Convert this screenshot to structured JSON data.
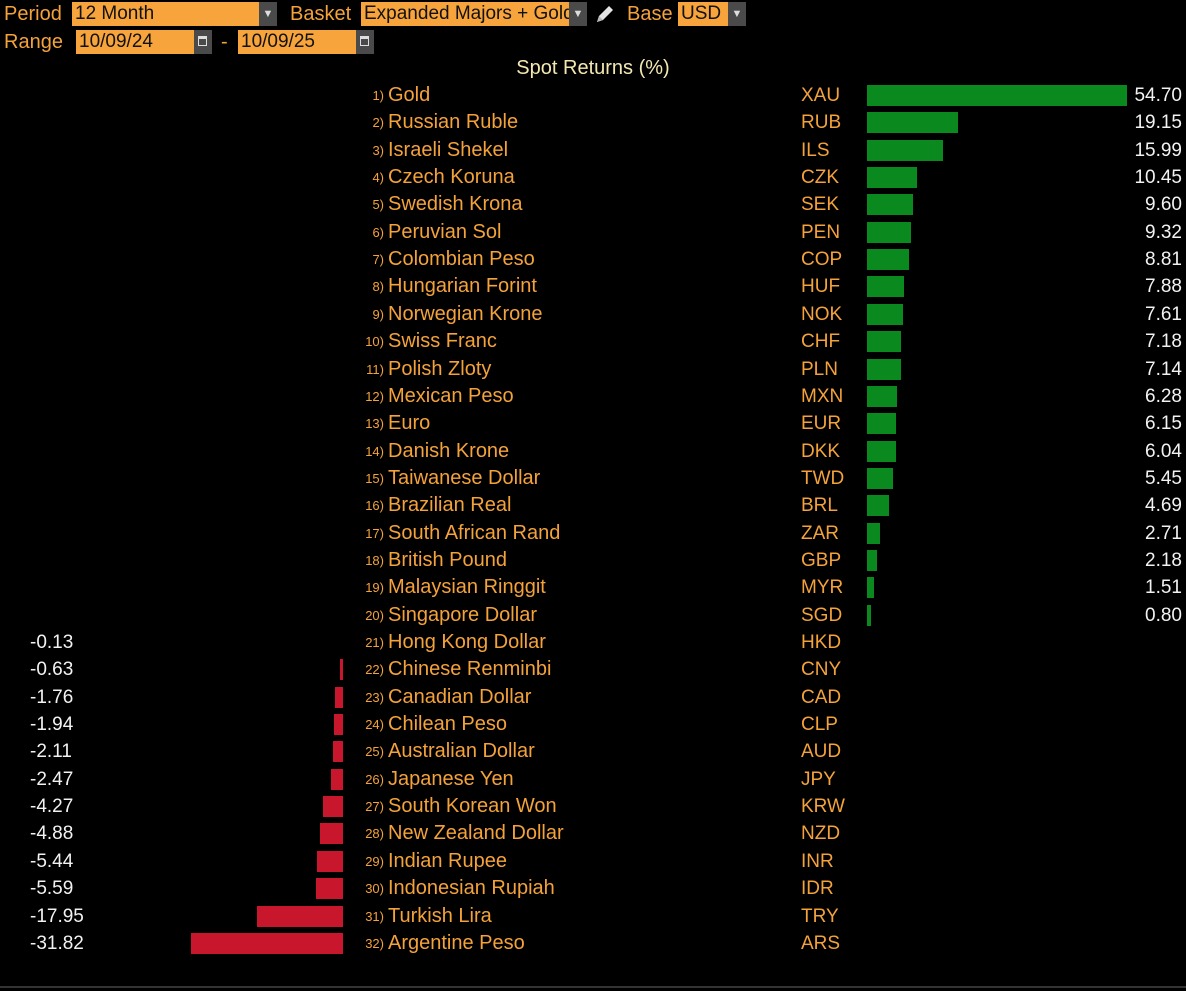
{
  "toolbar": {
    "period_label": "Period",
    "period_value": "12 Month",
    "basket_label": "Basket",
    "basket_value": "Expanded Majors + Gold",
    "base_label": "Base",
    "base_value": "USD",
    "range_label": "Range",
    "range_start": "10/09/24",
    "range_sep": "-",
    "range_end": "10/09/25"
  },
  "chart_data": {
    "type": "bar",
    "title": "Spot Returns (%)",
    "orientation": "horizontal",
    "rows": [
      {
        "rank": "1)",
        "name": "Gold",
        "code": "XAU",
        "value": 54.7
      },
      {
        "rank": "2)",
        "name": "Russian Ruble",
        "code": "RUB",
        "value": 19.15
      },
      {
        "rank": "3)",
        "name": "Israeli Shekel",
        "code": "ILS",
        "value": 15.99
      },
      {
        "rank": "4)",
        "name": "Czech Koruna",
        "code": "CZK",
        "value": 10.45
      },
      {
        "rank": "5)",
        "name": "Swedish Krona",
        "code": "SEK",
        "value": 9.6
      },
      {
        "rank": "6)",
        "name": "Peruvian Sol",
        "code": "PEN",
        "value": 9.32
      },
      {
        "rank": "7)",
        "name": "Colombian Peso",
        "code": "COP",
        "value": 8.81
      },
      {
        "rank": "8)",
        "name": "Hungarian Forint",
        "code": "HUF",
        "value": 7.88
      },
      {
        "rank": "9)",
        "name": "Norwegian Krone",
        "code": "NOK",
        "value": 7.61
      },
      {
        "rank": "10)",
        "name": "Swiss Franc",
        "code": "CHF",
        "value": 7.18
      },
      {
        "rank": "11)",
        "name": "Polish Zloty",
        "code": "PLN",
        "value": 7.14
      },
      {
        "rank": "12)",
        "name": "Mexican Peso",
        "code": "MXN",
        "value": 6.28
      },
      {
        "rank": "13)",
        "name": "Euro",
        "code": "EUR",
        "value": 6.15
      },
      {
        "rank": "14)",
        "name": "Danish Krone",
        "code": "DKK",
        "value": 6.04
      },
      {
        "rank": "15)",
        "name": "Taiwanese Dollar",
        "code": "TWD",
        "value": 5.45
      },
      {
        "rank": "16)",
        "name": "Brazilian Real",
        "code": "BRL",
        "value": 4.69
      },
      {
        "rank": "17)",
        "name": "South African Rand",
        "code": "ZAR",
        "value": 2.71
      },
      {
        "rank": "18)",
        "name": "British Pound",
        "code": "GBP",
        "value": 2.18
      },
      {
        "rank": "19)",
        "name": "Malaysian Ringgit",
        "code": "MYR",
        "value": 1.51
      },
      {
        "rank": "20)",
        "name": "Singapore Dollar",
        "code": "SGD",
        "value": 0.8
      },
      {
        "rank": "21)",
        "name": "Hong Kong Dollar",
        "code": "HKD",
        "value": -0.13
      },
      {
        "rank": "22)",
        "name": "Chinese Renminbi",
        "code": "CNY",
        "value": -0.63
      },
      {
        "rank": "23)",
        "name": "Canadian Dollar",
        "code": "CAD",
        "value": -1.76
      },
      {
        "rank": "24)",
        "name": "Chilean Peso",
        "code": "CLP",
        "value": -1.94
      },
      {
        "rank": "25)",
        "name": "Australian Dollar",
        "code": "AUD",
        "value": -2.11
      },
      {
        "rank": "26)",
        "name": "Japanese Yen",
        "code": "JPY",
        "value": -2.47
      },
      {
        "rank": "27)",
        "name": "South Korean Won",
        "code": "KRW",
        "value": -4.27
      },
      {
        "rank": "28)",
        "name": "New Zealand Dollar",
        "code": "NZD",
        "value": -4.88
      },
      {
        "rank": "29)",
        "name": "Indian Rupee",
        "code": "INR",
        "value": -5.44
      },
      {
        "rank": "30)",
        "name": "Indonesian Rupiah",
        "code": "IDR",
        "value": -5.59
      },
      {
        "rank": "31)",
        "name": "Turkish Lira",
        "code": "TRY",
        "value": -17.95
      },
      {
        "rank": "32)",
        "name": "Argentine Peso",
        "code": "ARS",
        "value": -31.82
      }
    ],
    "colors": {
      "positive": "#0a8a1e",
      "negative": "#c8172d"
    }
  }
}
